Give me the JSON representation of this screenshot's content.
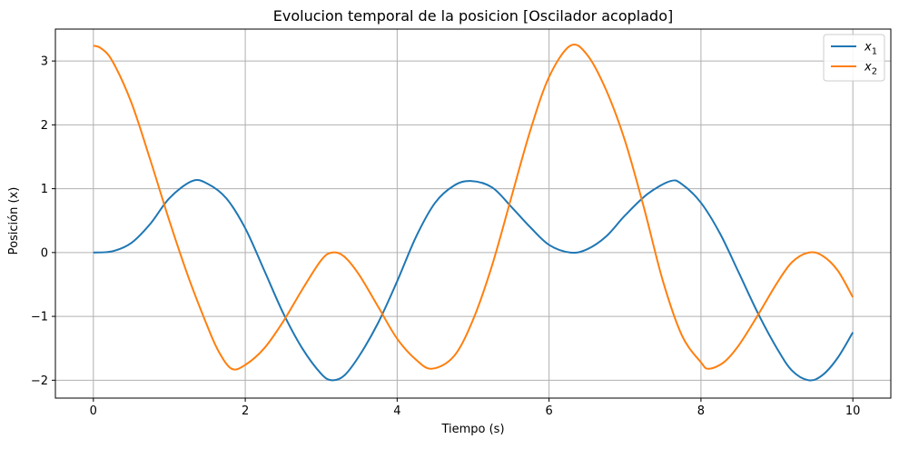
{
  "chart_data": {
    "type": "line",
    "title": "Evolucion temporal de la posicion [Oscilador acoplado]",
    "xlabel": "Tiempo (s)",
    "ylabel": "Posición (x)",
    "xlim": [
      -0.5,
      10.5
    ],
    "ylim": [
      -2.28,
      3.5
    ],
    "xticks": [
      0,
      2,
      4,
      6,
      8,
      10
    ],
    "xtick_labels": [
      "0",
      "2",
      "4",
      "6",
      "8",
      "10"
    ],
    "yticks": [
      -2,
      -1,
      0,
      1,
      2,
      3
    ],
    "ytick_labels": [
      "−2",
      "−1",
      "0",
      "1",
      "2",
      "3"
    ],
    "grid": true,
    "legend_position": "top-right",
    "series": [
      {
        "name": "x1",
        "label_base": "x",
        "label_sub": "1",
        "color": "#1f77b4",
        "points": [
          [
            0,
            0
          ],
          [
            0.25,
            0.02
          ],
          [
            0.5,
            0.15
          ],
          [
            0.75,
            0.45
          ],
          [
            1.0,
            0.85
          ],
          [
            1.3,
            1.12
          ],
          [
            1.5,
            1.08
          ],
          [
            1.75,
            0.85
          ],
          [
            2.0,
            0.38
          ],
          [
            2.25,
            -0.28
          ],
          [
            2.5,
            -0.95
          ],
          [
            2.75,
            -1.5
          ],
          [
            3.0,
            -1.9
          ],
          [
            3.14,
            -2.0
          ],
          [
            3.3,
            -1.93
          ],
          [
            3.5,
            -1.62
          ],
          [
            3.75,
            -1.1
          ],
          [
            4.0,
            -0.45
          ],
          [
            4.25,
            0.25
          ],
          [
            4.5,
            0.78
          ],
          [
            4.75,
            1.05
          ],
          [
            4.97,
            1.12
          ],
          [
            5.25,
            1.02
          ],
          [
            5.5,
            0.72
          ],
          [
            5.75,
            0.4
          ],
          [
            6.0,
            0.12
          ],
          [
            6.28,
            0.0
          ],
          [
            6.5,
            0.05
          ],
          [
            6.75,
            0.25
          ],
          [
            7.0,
            0.58
          ],
          [
            7.3,
            0.92
          ],
          [
            7.6,
            1.12
          ],
          [
            7.75,
            1.07
          ],
          [
            8.0,
            0.78
          ],
          [
            8.25,
            0.3
          ],
          [
            8.5,
            -0.32
          ],
          [
            8.75,
            -0.95
          ],
          [
            9.0,
            -1.5
          ],
          [
            9.2,
            -1.85
          ],
          [
            9.42,
            -2.0
          ],
          [
            9.6,
            -1.92
          ],
          [
            9.8,
            -1.65
          ],
          [
            10.0,
            -1.25
          ]
        ]
      },
      {
        "name": "x2",
        "label_base": "x",
        "label_sub": "2",
        "color": "#ff7f0e",
        "points": [
          [
            0,
            3.24
          ],
          [
            0.1,
            3.2
          ],
          [
            0.25,
            3.0
          ],
          [
            0.5,
            2.35
          ],
          [
            0.75,
            1.45
          ],
          [
            1.0,
            0.5
          ],
          [
            1.25,
            -0.38
          ],
          [
            1.5,
            -1.15
          ],
          [
            1.65,
            -1.55
          ],
          [
            1.82,
            -1.82
          ],
          [
            2.0,
            -1.76
          ],
          [
            2.25,
            -1.5
          ],
          [
            2.5,
            -1.08
          ],
          [
            2.75,
            -0.58
          ],
          [
            3.0,
            -0.12
          ],
          [
            3.14,
            0.0
          ],
          [
            3.3,
            -0.06
          ],
          [
            3.5,
            -0.35
          ],
          [
            3.75,
            -0.85
          ],
          [
            4.0,
            -1.35
          ],
          [
            4.25,
            -1.68
          ],
          [
            4.46,
            -1.82
          ],
          [
            4.75,
            -1.62
          ],
          [
            5.0,
            -1.05
          ],
          [
            5.25,
            -0.2
          ],
          [
            5.5,
            0.85
          ],
          [
            5.75,
            1.9
          ],
          [
            6.0,
            2.75
          ],
          [
            6.28,
            3.24
          ],
          [
            6.5,
            3.1
          ],
          [
            6.75,
            2.55
          ],
          [
            7.0,
            1.75
          ],
          [
            7.25,
            0.7
          ],
          [
            7.5,
            -0.45
          ],
          [
            7.75,
            -1.3
          ],
          [
            8.0,
            -1.72
          ],
          [
            8.1,
            -1.82
          ],
          [
            8.3,
            -1.72
          ],
          [
            8.5,
            -1.45
          ],
          [
            8.75,
            -0.98
          ],
          [
            9.0,
            -0.48
          ],
          [
            9.2,
            -0.15
          ],
          [
            9.42,
            0.0
          ],
          [
            9.6,
            -0.05
          ],
          [
            9.8,
            -0.28
          ],
          [
            10.0,
            -0.7
          ]
        ]
      }
    ]
  }
}
